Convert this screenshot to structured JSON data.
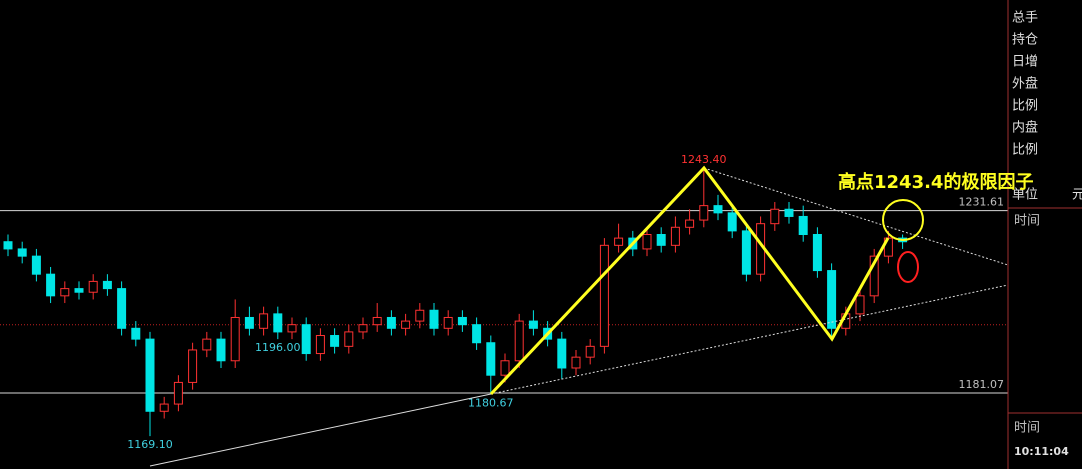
{
  "chart_data": {
    "type": "candlestick",
    "ylim": [
      1160,
      1290
    ],
    "up_color": "#ff3232",
    "down_color": "#00e5e5",
    "open": [
      1223,
      1221,
      1219,
      1214,
      1208,
      1210,
      1209,
      1212,
      1210,
      1199,
      1196,
      1176,
      1178,
      1184,
      1193,
      1196,
      1190,
      1202,
      1199,
      1203,
      1198,
      1200,
      1192,
      1197,
      1194,
      1198,
      1200,
      1202,
      1199,
      1201,
      1204,
      1199,
      1202,
      1200,
      1195,
      1186,
      1190,
      1201,
      1199,
      1196,
      1188,
      1191,
      1194,
      1222,
      1224,
      1221,
      1225,
      1222,
      1227,
      1229,
      1233,
      1231,
      1226,
      1214,
      1228,
      1232,
      1230,
      1225,
      1215,
      1199,
      1203,
      1208,
      1219,
      1224
    ],
    "high": [
      1225,
      1223,
      1221,
      1216,
      1212,
      1212,
      1214,
      1214,
      1212,
      1201,
      1198,
      1180,
      1186,
      1195,
      1198,
      1198,
      1207,
      1205,
      1205,
      1205,
      1202,
      1202,
      1199,
      1199,
      1200,
      1202,
      1206,
      1204,
      1203,
      1206,
      1206,
      1204,
      1204,
      1202,
      1197,
      1192,
      1203,
      1204,
      1201,
      1198,
      1193,
      1196,
      1224,
      1228,
      1226,
      1227,
      1227,
      1230,
      1232,
      1243.4,
      1236,
      1233,
      1228,
      1230,
      1234,
      1234,
      1233,
      1227,
      1217,
      1205,
      1210,
      1221,
      1226,
      1225
    ],
    "low": [
      1219,
      1217,
      1212,
      1206,
      1206,
      1207,
      1207,
      1208,
      1197,
      1194,
      1169.1,
      1174,
      1176,
      1182,
      1191,
      1188,
      1188,
      1197,
      1197,
      1196,
      1196,
      1190,
      1190,
      1192,
      1192,
      1196,
      1198,
      1197,
      1197,
      1199,
      1197,
      1197,
      1198,
      1193,
      1180.67,
      1184,
      1188,
      1197,
      1194,
      1185,
      1186,
      1189,
      1192,
      1220,
      1219,
      1219,
      1220,
      1220,
      1225,
      1227,
      1229,
      1224,
      1212,
      1212,
      1226,
      1228,
      1223,
      1213,
      1196,
      1197,
      1201,
      1206,
      1217,
      1221
    ],
    "close": [
      1221,
      1219,
      1214,
      1208,
      1210,
      1209,
      1212,
      1210,
      1199,
      1196,
      1176,
      1178,
      1184,
      1193,
      1196,
      1190,
      1202,
      1199,
      1203,
      1198,
      1200,
      1192,
      1197,
      1194,
      1198,
      1200,
      1202,
      1199,
      1201,
      1204,
      1199,
      1202,
      1200,
      1195,
      1186,
      1190,
      1201,
      1199,
      1196,
      1188,
      1191,
      1194,
      1222,
      1224,
      1221,
      1225,
      1222,
      1227,
      1229,
      1233,
      1231,
      1226,
      1214,
      1228,
      1232,
      1230,
      1225,
      1215,
      1199,
      1203,
      1208,
      1219,
      1224,
      1223
    ],
    "levels": [
      {
        "value": 1231.61,
        "label": "1231.61"
      },
      {
        "value": 1181.07,
        "label": "1181.07"
      }
    ],
    "reference_line": {
      "value": 1200,
      "color": "#c02020"
    },
    "extremes": [
      {
        "value": 1243.4,
        "label": "1243.40",
        "side": "high",
        "color": "#ff3232"
      },
      {
        "value": 1196,
        "label": "1196.00",
        "side": "low",
        "color": "#40d0e0"
      },
      {
        "value": 1180.67,
        "label": "1180.67",
        "side": "low",
        "color": "#40d0e0"
      },
      {
        "value": 1169.1,
        "label": "1169.10",
        "side": "low",
        "color": "#40d0e0"
      }
    ],
    "annotation": "高点1243.4的极限因子"
  },
  "side_panel": {
    "labels": [
      "总手",
      "持仓",
      "日增",
      "外盘",
      "比例",
      "内盘",
      "比例"
    ],
    "unit_label": "单位",
    "unit_value": "元",
    "time_label": "时间",
    "time_label_2": "时间",
    "clock": "10:11:04"
  }
}
